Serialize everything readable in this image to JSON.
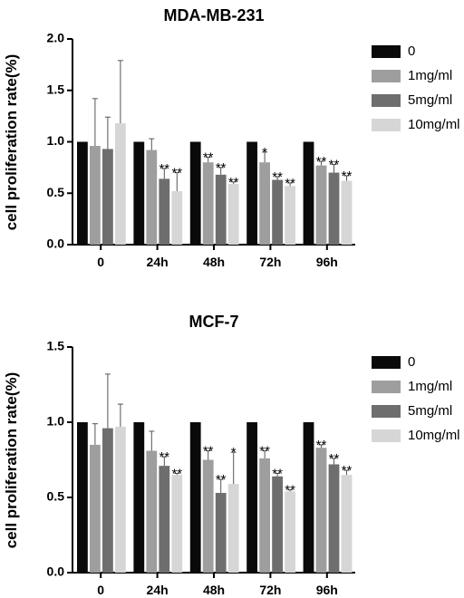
{
  "chart_data": [
    {
      "type": "bar",
      "title": "MDA-MB-231",
      "ylabel": "cell proliferation rate(%)",
      "xlabel": "",
      "categories": [
        "0",
        "24h",
        "48h",
        "72h",
        "96h"
      ],
      "ylim": [
        0,
        2.0
      ],
      "yticks": [
        "0.0",
        "0.5",
        "1.0",
        "1.5",
        "2.0"
      ],
      "ytick_values": [
        0,
        0.5,
        1.0,
        1.5,
        2.0
      ],
      "legend_position": "right",
      "colors": [
        "#0a0a0a",
        "#9e9e9e",
        "#6e6e6e",
        "#d6d6d6"
      ],
      "series": [
        {
          "name": "0",
          "values": [
            1.0,
            1.0,
            1.0,
            1.0,
            1.0
          ],
          "errors": [
            0,
            0,
            0,
            0,
            0
          ],
          "annotations": [
            "",
            "",
            "",
            "",
            ""
          ]
        },
        {
          "name": "1mg/ml",
          "values": [
            0.96,
            0.92,
            0.8,
            0.8,
            0.77
          ],
          "errors": [
            0.46,
            0.11,
            0.05,
            0.1,
            0.04
          ],
          "annotations": [
            "",
            "",
            "**",
            "*",
            "**"
          ]
        },
        {
          "name": "5mg/ml",
          "values": [
            0.93,
            0.64,
            0.68,
            0.63,
            0.7
          ],
          "errors": [
            0.31,
            0.1,
            0.07,
            0.03,
            0.08
          ],
          "annotations": [
            "",
            "**",
            "**",
            "**",
            "**"
          ]
        },
        {
          "name": "10mg/ml",
          "values": [
            1.18,
            0.52,
            0.59,
            0.57,
            0.62
          ],
          "errors": [
            0.61,
            0.18,
            0.02,
            0.03,
            0.05
          ],
          "annotations": [
            "",
            "**",
            "**",
            "**",
            "**"
          ]
        }
      ]
    },
    {
      "type": "bar",
      "title": "MCF-7",
      "ylabel": "cell proliferation rate(%)",
      "xlabel": "",
      "categories": [
        "0",
        "24h",
        "48h",
        "72h",
        "96h"
      ],
      "ylim": [
        0,
        1.5
      ],
      "yticks": [
        "0.0",
        "0.5",
        "1.0",
        "1.5"
      ],
      "ytick_values": [
        0,
        0.5,
        1.0,
        1.5
      ],
      "legend_position": "right",
      "colors": [
        "#0a0a0a",
        "#9e9e9e",
        "#6e6e6e",
        "#d6d6d6"
      ],
      "series": [
        {
          "name": "0",
          "values": [
            1.0,
            1.0,
            1.0,
            1.0,
            1.0
          ],
          "errors": [
            0,
            0,
            0,
            0,
            0
          ],
          "annotations": [
            "",
            "",
            "",
            "",
            ""
          ]
        },
        {
          "name": "1mg/ml",
          "values": [
            0.85,
            0.81,
            0.75,
            0.76,
            0.83
          ],
          "errors": [
            0.14,
            0.13,
            0.06,
            0.05,
            0.02
          ],
          "annotations": [
            "",
            "",
            "**",
            "**",
            "**"
          ]
        },
        {
          "name": "5mg/ml",
          "values": [
            0.96,
            0.71,
            0.53,
            0.64,
            0.72
          ],
          "errors": [
            0.36,
            0.06,
            0.09,
            0.02,
            0.04
          ],
          "annotations": [
            "",
            "**",
            "**",
            "**",
            "**"
          ]
        },
        {
          "name": "10mg/ml",
          "values": [
            0.97,
            0.65,
            0.59,
            0.54,
            0.65
          ],
          "errors": [
            0.15,
            0.01,
            0.21,
            0.01,
            0.03
          ],
          "annotations": [
            "",
            "**",
            "*",
            "**",
            "**"
          ]
        }
      ]
    }
  ]
}
